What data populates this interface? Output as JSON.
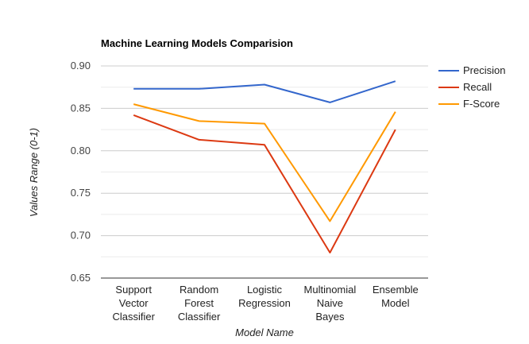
{
  "chart_data": {
    "type": "line",
    "title": "Machine Learning Models Comparision",
    "xlabel": "Model Name",
    "ylabel": "Values Range (0-1)",
    "ylim": [
      0.65,
      0.9
    ],
    "yticks": [
      0.65,
      0.7,
      0.75,
      0.8,
      0.85,
      0.9
    ],
    "ytick_labels": [
      "0.65",
      "0.70",
      "0.75",
      "0.80",
      "0.85",
      "0.90"
    ],
    "minor_gridlines": true,
    "grid": true,
    "legend_position": "right",
    "categories": [
      [
        "Support",
        "Vector",
        "Classifier"
      ],
      [
        "Random",
        "Forest",
        "Classifier"
      ],
      [
        "Logistic",
        "Regression"
      ],
      [
        "Multinomial",
        "Naive",
        "Bayes"
      ],
      [
        "Ensemble",
        "Model"
      ]
    ],
    "series": [
      {
        "name": "Precision",
        "color": "#3366cc",
        "values": [
          0.873,
          0.873,
          0.878,
          0.857,
          0.882
        ]
      },
      {
        "name": "Recall",
        "color": "#dc3912",
        "values": [
          0.842,
          0.813,
          0.807,
          0.68,
          0.825
        ]
      },
      {
        "name": "F-Score",
        "color": "#ff9900",
        "values": [
          0.855,
          0.835,
          0.832,
          0.717,
          0.846
        ]
      }
    ]
  }
}
